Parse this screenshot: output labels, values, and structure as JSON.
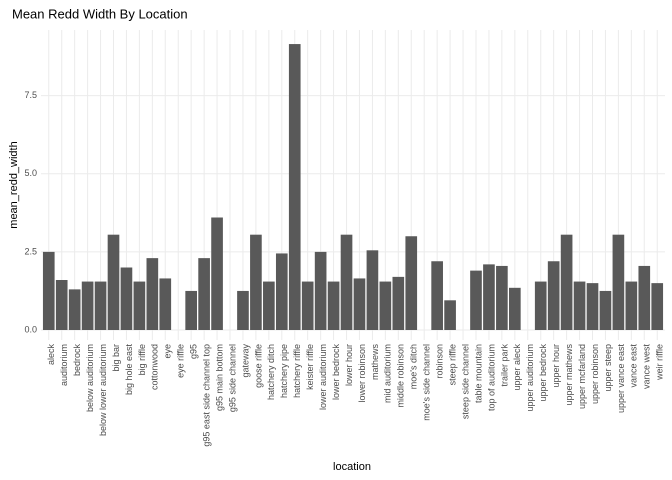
{
  "chart_data": {
    "type": "bar",
    "title": "Mean Redd Width By Location",
    "x_label": "location",
    "y_label": "mean_redd_width",
    "categories": [
      "aleck",
      "auditorium",
      "bedrock",
      "below auditorium",
      "below lower auditorium",
      "big bar",
      "big hole east",
      "big riffle",
      "cottonwood",
      "eye",
      "eye riffle",
      "g95",
      "g95 east side channel top",
      "g95 main bottom",
      "g95 side channel",
      "gateway",
      "goose riffle",
      "hatchery ditch",
      "hatchery pipe",
      "hatchery riffle",
      "keister riffle",
      "lower auditorium",
      "lower bedrock",
      "lower hour",
      "lower robinson",
      "mathews",
      "mid auditorium",
      "middle robinson",
      "moe's ditch",
      "moe's side channel",
      "robinson",
      "steep riffle",
      "steep side channel",
      "table mountain",
      "top of auditorium",
      "trailer park",
      "upper aleck",
      "upper auditorium",
      "upper bedrock",
      "upper hour",
      "upper mathews",
      "upper mcfarland",
      "upper robinson",
      "upper steep",
      "upper vance east",
      "vance east",
      "vance west",
      "weir riffle"
    ],
    "values": [
      2.5,
      1.6,
      1.3,
      1.55,
      1.55,
      3.05,
      2.0,
      1.55,
      2.3,
      1.65,
      null,
      1.25,
      2.3,
      3.6,
      null,
      1.25,
      3.05,
      1.55,
      2.45,
      9.15,
      1.55,
      2.5,
      1.55,
      3.05,
      1.65,
      2.55,
      1.55,
      1.7,
      3.0,
      null,
      2.2,
      0.95,
      null,
      1.9,
      2.1,
      2.05,
      1.35,
      null,
      1.55,
      2.2,
      3.05,
      1.55,
      1.5,
      1.25,
      3.05,
      1.55,
      2.05,
      1.5
    ],
    "color": "#595959",
    "ylim": [
      -0.32,
      9.6
    ],
    "yticks": [
      {
        "value": 0,
        "label": "0.0"
      },
      2.5,
      {
        "value": 5,
        "label": "5.0"
      },
      7.5
    ],
    "grid": true
  }
}
